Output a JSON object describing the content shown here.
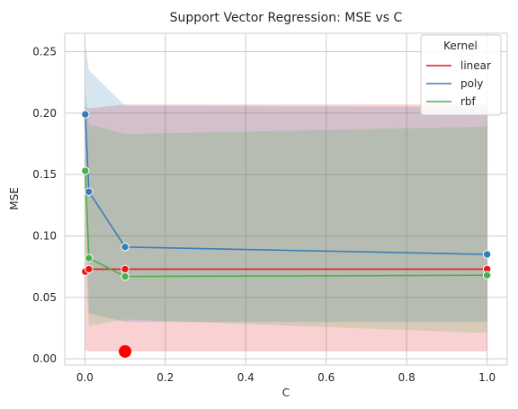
{
  "chart_data": {
    "type": "line",
    "title": "Support Vector Regression: MSE vs C",
    "xlabel": "C",
    "ylabel": "MSE",
    "xlim": [
      -0.05,
      1.05
    ],
    "ylim": [
      -0.005,
      0.265
    ],
    "xticks": [
      0.0,
      0.2,
      0.4,
      0.6,
      0.8,
      1.0
    ],
    "xtick_labels": [
      "0.0",
      "0.2",
      "0.4",
      "0.6",
      "0.8",
      "1.0"
    ],
    "yticks": [
      0.0,
      0.05,
      0.1,
      0.15,
      0.2,
      0.25
    ],
    "ytick_labels": [
      "0.00",
      "0.05",
      "0.10",
      "0.15",
      "0.20",
      "0.25"
    ],
    "grid": true,
    "legend": {
      "title": "Kernel",
      "placement": "top-right"
    },
    "series": [
      {
        "name": "linear",
        "color": "#e41a1c",
        "x": [
          0.001,
          0.01,
          0.1,
          1.0
        ],
        "y": [
          0.071,
          0.073,
          0.073,
          0.073
        ],
        "ci_low": [
          0.007,
          0.006,
          0.006,
          0.006
        ],
        "ci_high": [
          0.205,
          0.204,
          0.207,
          0.207
        ]
      },
      {
        "name": "poly",
        "color": "#377eb8",
        "x": [
          0.001,
          0.01,
          0.1,
          1.0
        ],
        "y": [
          0.199,
          0.136,
          0.091,
          0.085
        ],
        "ci_low": [
          0.142,
          0.037,
          0.03,
          0.03
        ],
        "ci_high": [
          0.257,
          0.235,
          0.206,
          0.205
        ]
      },
      {
        "name": "rbf",
        "color": "#4daf4a",
        "x": [
          0.001,
          0.01,
          0.1,
          1.0
        ],
        "y": [
          0.153,
          0.082,
          0.067,
          0.068
        ],
        "ci_low": [
          0.085,
          0.027,
          0.032,
          0.021
        ],
        "ci_high": [
          0.219,
          0.191,
          0.183,
          0.189
        ]
      }
    ],
    "highlight_point": {
      "x": 0.1,
      "y": 0.006,
      "color": "#ff0000"
    }
  }
}
